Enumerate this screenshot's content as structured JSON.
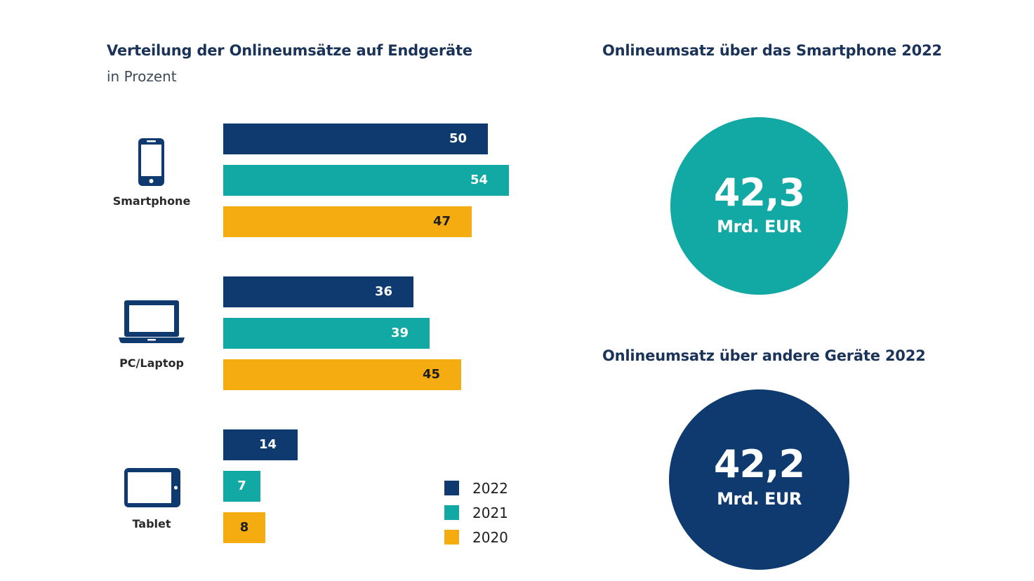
{
  "left_panel": {
    "title": "Verteilung der Onlineumsätze auf Endgeräte",
    "subtitle": "in Prozent"
  },
  "right_panel": {
    "smartphone": {
      "title": "Onlineumsatz über das Smartphone 2022",
      "value": "42,3",
      "unit": "Mrd. EUR",
      "color": "#12a8a4"
    },
    "other": {
      "title": "Onlineumsatz über andere Geräte 2022",
      "value": "42,2",
      "unit": "Mrd. EUR",
      "color": "#0e3a70"
    }
  },
  "colors": {
    "2022": "#0e3a70",
    "2021": "#12a8a4",
    "2020": "#f5ac10",
    "label_light": "#ffffff",
    "label_dark": "#1e1e1e",
    "icon": "#0e3a70"
  },
  "chart_data": {
    "type": "bar",
    "orientation": "horizontal",
    "title": "Verteilung der Onlineumsätze auf Endgeräte",
    "subtitle": "in Prozent",
    "xlabel": "",
    "ylabel": "",
    "unit": "%",
    "xlim": [
      0,
      60
    ],
    "grid": false,
    "legend_position": "bottom-right",
    "categories": [
      "Smartphone",
      "PC/Laptop",
      "Tablet"
    ],
    "category_icons": [
      "smartphone-icon",
      "laptop-icon",
      "tablet-icon"
    ],
    "series": [
      {
        "name": "2022",
        "values": [
          50,
          36,
          14
        ]
      },
      {
        "name": "2021",
        "values": [
          54,
          39,
          7
        ]
      },
      {
        "name": "2020",
        "values": [
          47,
          45,
          8
        ]
      }
    ],
    "legend": [
      "2022",
      "2021",
      "2020"
    ]
  }
}
